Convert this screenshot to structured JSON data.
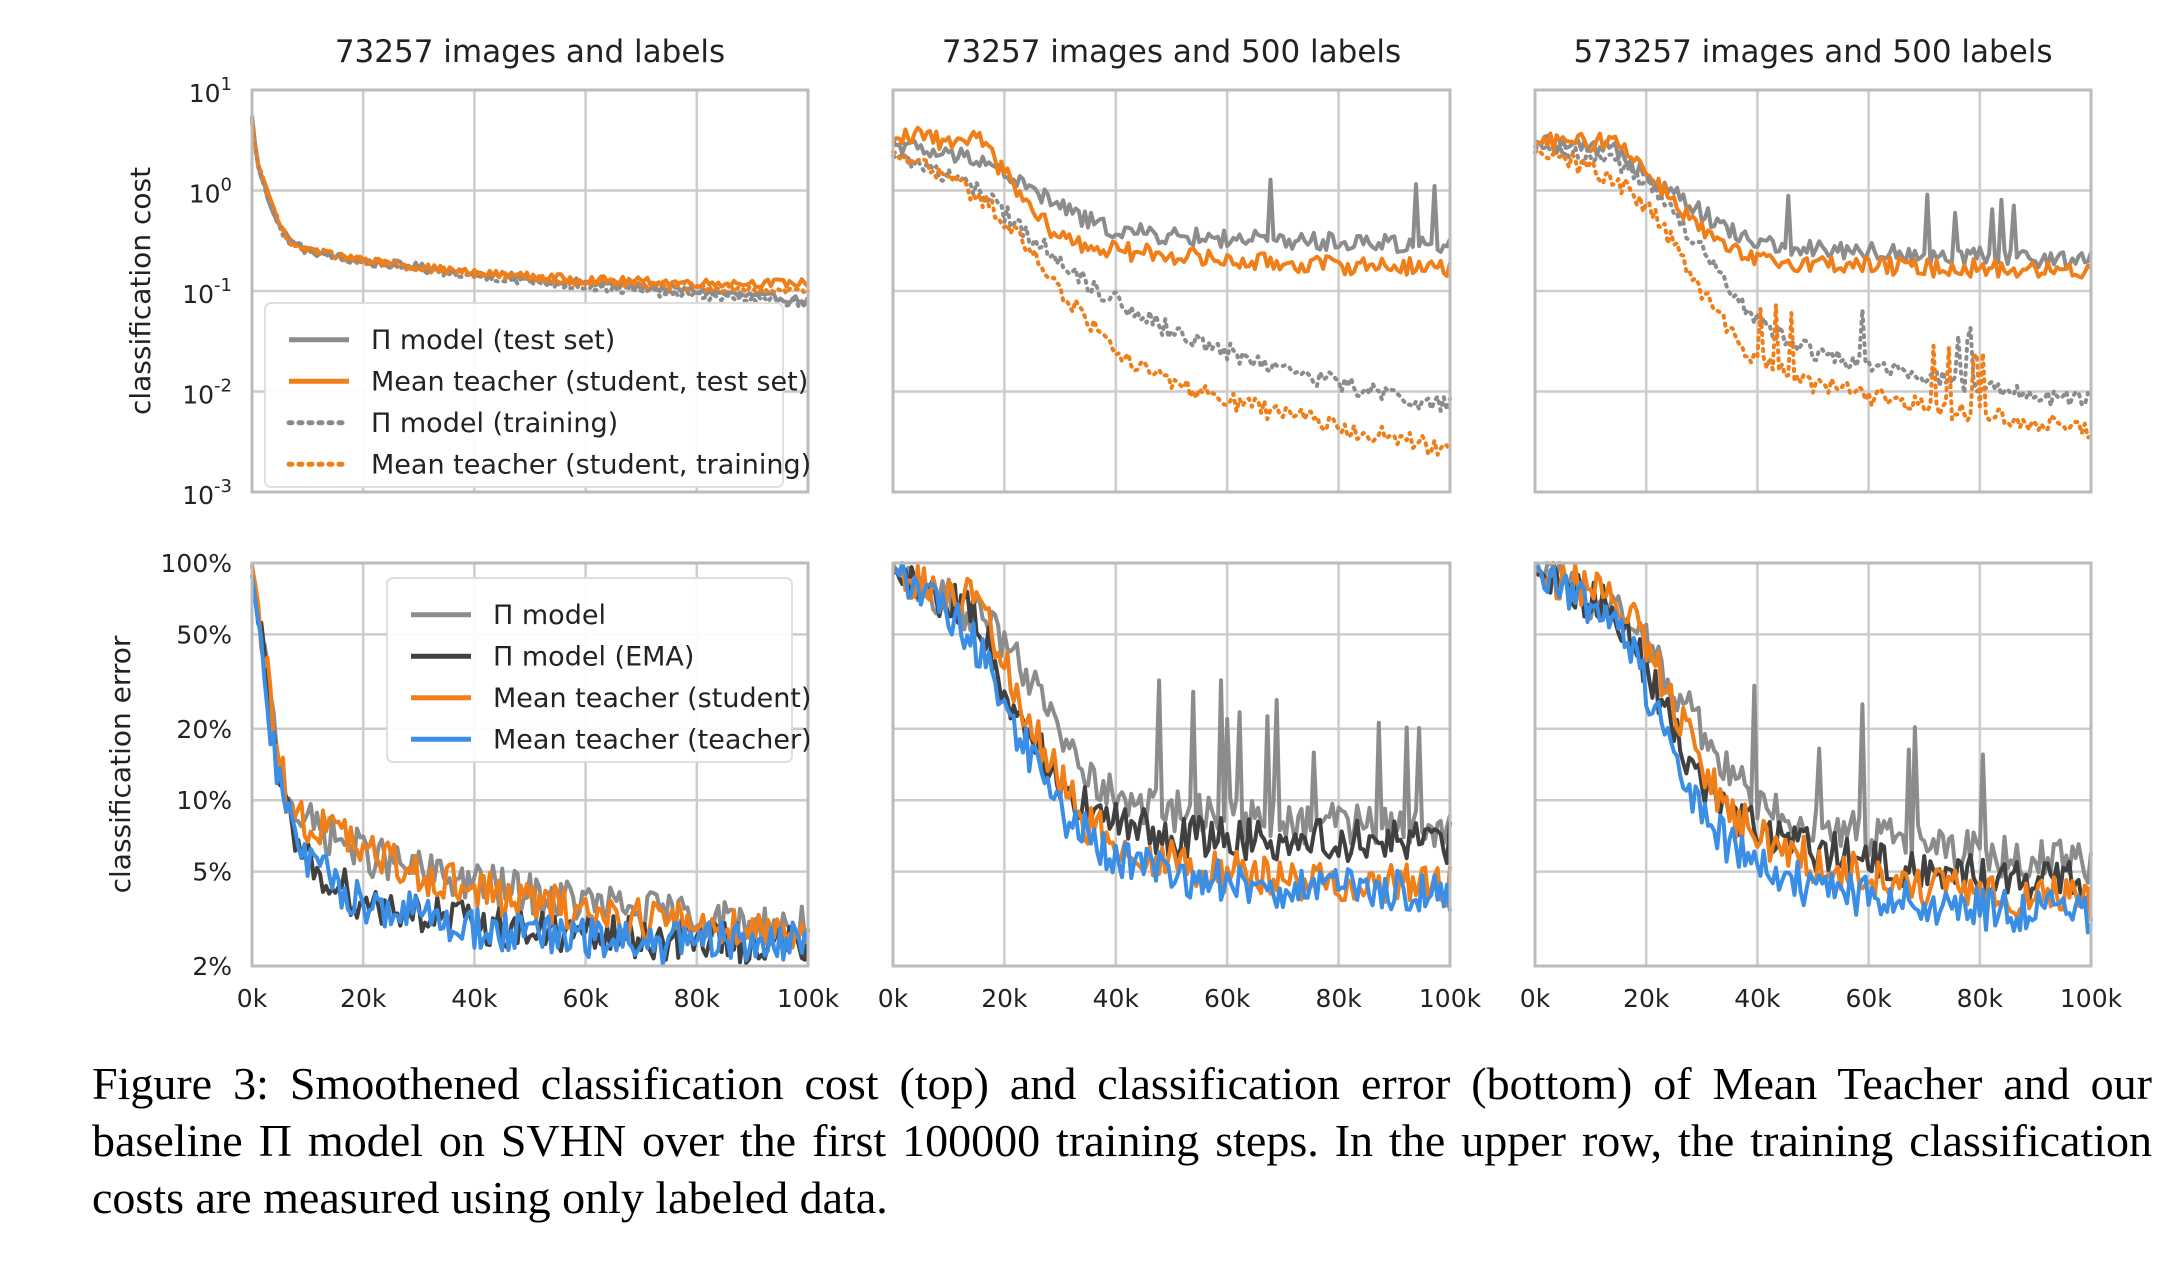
{
  "caption": "Figure 3: Smoothened classification cost (top) and classification error (bottom) of Mean Teacher and our baseline Π model on SVHN over the first 100000 training steps. In the upper row, the training classification costs are measured using only labeled data.",
  "colors": {
    "pi_model": "#8c8c8c",
    "pi_model_ema": "#404040",
    "mean_teacher_student": "#f07f1a",
    "mean_teacher_teacher": "#3a8ee6",
    "grid": "#cccccc",
    "axes": "#bbbbbb"
  },
  "shared_axes": {
    "x_ticks": [
      "0k",
      "20k",
      "40k",
      "60k",
      "80k",
      "100k"
    ],
    "top_ylabel": "classification cost",
    "bottom_ylabel": "classification error",
    "top_yticks": [
      "10^1",
      "10^0",
      "10^-1",
      "10^-2",
      "10^-3"
    ],
    "bottom_yticks": [
      "100%",
      "50%",
      "20%",
      "10%",
      "5%",
      "2%"
    ]
  },
  "legend_top": [
    {
      "label": "Π model (test set)",
      "color": "#8c8c8c",
      "style": "solid"
    },
    {
      "label": "Mean teacher (student, test set)",
      "color": "#f07f1a",
      "style": "solid"
    },
    {
      "label": "Π model (training)",
      "color": "#8c8c8c",
      "style": "dotted"
    },
    {
      "label": "Mean teacher (student, training)",
      "color": "#f07f1a",
      "style": "dotted"
    }
  ],
  "legend_bottom": [
    {
      "label": "Π model",
      "color": "#8c8c8c",
      "style": "solid"
    },
    {
      "label": "Π model (EMA)",
      "color": "#404040",
      "style": "solid"
    },
    {
      "label": "Mean teacher (student)",
      "color": "#f07f1a",
      "style": "solid"
    },
    {
      "label": "Mean teacher (teacher)",
      "color": "#3a8ee6",
      "style": "solid"
    }
  ],
  "chart_data": [
    {
      "type": "line",
      "title": "73257 images and labels",
      "ylabel": "classification cost",
      "yscale": "log",
      "ylim": [
        0.001,
        10
      ],
      "xlim": [
        0,
        100000
      ],
      "grid": true,
      "legend": "lower-left",
      "series": [
        {
          "name": "Π model (test set)",
          "style": "solid",
          "x": [
            0,
            1000,
            3000,
            5000,
            7000,
            10000,
            20000,
            40000,
            60000,
            80000,
            100000
          ],
          "y": [
            5.5,
            1.8,
            0.8,
            0.45,
            0.3,
            0.25,
            0.2,
            0.15,
            0.12,
            0.1,
            0.08
          ]
        },
        {
          "name": "Mean teacher (student, test set)",
          "style": "solid",
          "x": [
            0,
            1000,
            3000,
            5000,
            7000,
            10000,
            20000,
            40000,
            60000,
            80000,
            100000
          ],
          "y": [
            5.0,
            1.9,
            0.85,
            0.45,
            0.3,
            0.26,
            0.2,
            0.15,
            0.13,
            0.12,
            0.12
          ]
        },
        {
          "name": "Π model (training)",
          "style": "dotted",
          "x": [
            0,
            1000,
            3000,
            5000,
            7000,
            10000,
            20000,
            40000,
            60000,
            80000,
            100000
          ],
          "y": [
            5.0,
            1.8,
            0.8,
            0.42,
            0.3,
            0.25,
            0.19,
            0.14,
            0.11,
            0.09,
            0.075
          ]
        },
        {
          "name": "Mean teacher (student, training)",
          "style": "dotted",
          "x": [
            0,
            1000,
            3000,
            5000,
            7000,
            10000,
            20000,
            40000,
            60000,
            80000,
            100000
          ],
          "y": [
            4.8,
            1.8,
            0.85,
            0.45,
            0.3,
            0.26,
            0.2,
            0.15,
            0.12,
            0.11,
            0.1
          ]
        }
      ]
    },
    {
      "type": "line",
      "title": "73257 images and 500 labels",
      "ylabel": "classification cost",
      "yscale": "log",
      "ylim": [
        0.001,
        10
      ],
      "xlim": [
        0,
        100000
      ],
      "grid": true,
      "series": [
        {
          "name": "Π model (test set)",
          "style": "solid",
          "x": [
            0,
            5000,
            10000,
            15000,
            20000,
            25000,
            30000,
            35000,
            40000,
            50000,
            60000,
            70000,
            80000,
            90000,
            100000
          ],
          "y": [
            3.0,
            2.5,
            2.2,
            2.2,
            1.5,
            1.0,
            0.7,
            0.5,
            0.4,
            0.35,
            0.33,
            0.32,
            0.31,
            0.3,
            0.3
          ]
        },
        {
          "name": "Mean teacher (student, test set)",
          "style": "solid",
          "x": [
            0,
            5000,
            10000,
            15000,
            20000,
            25000,
            30000,
            35000,
            40000,
            50000,
            60000,
            70000,
            80000,
            90000,
            100000
          ],
          "y": [
            3.2,
            3.5,
            3.0,
            3.5,
            1.5,
            0.6,
            0.35,
            0.28,
            0.25,
            0.23,
            0.2,
            0.19,
            0.18,
            0.18,
            0.17
          ]
        },
        {
          "name": "Π model (training)",
          "style": "dotted",
          "x": [
            0,
            5000,
            10000,
            15000,
            20000,
            25000,
            30000,
            35000,
            40000,
            50000,
            60000,
            70000,
            80000,
            90000,
            100000
          ],
          "y": [
            2.3,
            1.8,
            1.4,
            1.0,
            0.6,
            0.35,
            0.2,
            0.12,
            0.08,
            0.04,
            0.025,
            0.017,
            0.012,
            0.009,
            0.007
          ]
        },
        {
          "name": "Mean teacher (student, training)",
          "style": "dotted",
          "x": [
            0,
            5000,
            10000,
            15000,
            20000,
            25000,
            30000,
            35000,
            40000,
            50000,
            60000,
            70000,
            80000,
            90000,
            100000
          ],
          "y": [
            2.3,
            1.8,
            1.3,
            0.9,
            0.5,
            0.25,
            0.1,
            0.05,
            0.025,
            0.012,
            0.008,
            0.006,
            0.0045,
            0.0035,
            0.0025
          ]
        }
      ]
    },
    {
      "type": "line",
      "title": "573257 images and 500 labels",
      "ylabel": "classification cost",
      "yscale": "log",
      "ylim": [
        0.001,
        10
      ],
      "xlim": [
        0,
        100000
      ],
      "grid": true,
      "series": [
        {
          "name": "Π model (test set)",
          "style": "solid",
          "x": [
            0,
            5000,
            10000,
            15000,
            20000,
            25000,
            30000,
            35000,
            40000,
            50000,
            60000,
            70000,
            80000,
            90000,
            100000
          ],
          "y": [
            3.0,
            2.8,
            2.5,
            2.5,
            1.5,
            1.0,
            0.6,
            0.4,
            0.3,
            0.27,
            0.25,
            0.23,
            0.22,
            0.21,
            0.2
          ]
        },
        {
          "name": "Mean teacher (student, test set)",
          "style": "solid",
          "x": [
            0,
            5000,
            10000,
            15000,
            20000,
            25000,
            30000,
            35000,
            40000,
            50000,
            60000,
            70000,
            80000,
            90000,
            100000
          ],
          "y": [
            3.0,
            3.0,
            3.0,
            3.3,
            1.5,
            0.8,
            0.4,
            0.25,
            0.2,
            0.19,
            0.18,
            0.17,
            0.17,
            0.16,
            0.16
          ]
        },
        {
          "name": "Π model (training)",
          "style": "dotted",
          "x": [
            0,
            5000,
            10000,
            15000,
            20000,
            25000,
            30000,
            35000,
            40000,
            50000,
            60000,
            70000,
            80000,
            90000,
            100000
          ],
          "y": [
            2.8,
            2.5,
            2.2,
            1.8,
            1.2,
            0.6,
            0.25,
            0.1,
            0.05,
            0.025,
            0.018,
            0.014,
            0.011,
            0.009,
            0.008
          ]
        },
        {
          "name": "Mean teacher (student, training)",
          "style": "dotted",
          "x": [
            0,
            5000,
            10000,
            15000,
            20000,
            25000,
            30000,
            35000,
            40000,
            50000,
            60000,
            70000,
            80000,
            90000,
            100000
          ],
          "y": [
            2.5,
            2.0,
            1.6,
            1.2,
            0.7,
            0.3,
            0.1,
            0.04,
            0.02,
            0.012,
            0.009,
            0.007,
            0.006,
            0.005,
            0.004
          ]
        }
      ]
    },
    {
      "type": "line",
      "title": "",
      "ylabel": "classification error",
      "yscale": "log",
      "ylim": [
        0.02,
        1.0
      ],
      "xlim": [
        0,
        100000
      ],
      "grid": true,
      "legend": "top-right",
      "series": [
        {
          "name": "Π model",
          "style": "solid",
          "x": [
            0,
            2000,
            4000,
            6000,
            8000,
            10000,
            15000,
            20000,
            30000,
            40000,
            50000,
            60000,
            70000,
            80000,
            90000,
            100000
          ],
          "y": [
            0.95,
            0.45,
            0.2,
            0.12,
            0.09,
            0.08,
            0.07,
            0.06,
            0.05,
            0.045,
            0.04,
            0.037,
            0.034,
            0.032,
            0.03,
            0.029
          ]
        },
        {
          "name": "Π model (EMA)",
          "style": "solid",
          "x": [
            0,
            2000,
            4000,
            6000,
            8000,
            10000,
            15000,
            20000,
            30000,
            40000,
            50000,
            60000,
            70000,
            80000,
            90000,
            100000
          ],
          "y": [
            0.9,
            0.4,
            0.15,
            0.09,
            0.065,
            0.055,
            0.045,
            0.037,
            0.034,
            0.03,
            0.028,
            0.027,
            0.026,
            0.026,
            0.025,
            0.025
          ]
        },
        {
          "name": "Mean teacher (student)",
          "style": "solid",
          "x": [
            0,
            2000,
            4000,
            6000,
            8000,
            10000,
            15000,
            20000,
            30000,
            40000,
            50000,
            60000,
            70000,
            80000,
            90000,
            100000
          ],
          "y": [
            0.95,
            0.45,
            0.2,
            0.11,
            0.085,
            0.08,
            0.075,
            0.06,
            0.05,
            0.042,
            0.037,
            0.034,
            0.032,
            0.03,
            0.029,
            0.028
          ]
        },
        {
          "name": "Mean teacher (teacher)",
          "style": "solid",
          "x": [
            0,
            2000,
            4000,
            6000,
            8000,
            10000,
            15000,
            20000,
            30000,
            40000,
            50000,
            60000,
            70000,
            80000,
            90000,
            100000
          ],
          "y": [
            0.9,
            0.4,
            0.15,
            0.09,
            0.065,
            0.055,
            0.045,
            0.037,
            0.033,
            0.029,
            0.027,
            0.026,
            0.025,
            0.025,
            0.025,
            0.025
          ]
        }
      ]
    },
    {
      "type": "line",
      "title": "",
      "ylabel": "classification error",
      "yscale": "log",
      "ylim": [
        0.02,
        1.0
      ],
      "xlim": [
        0,
        100000
      ],
      "grid": true,
      "series": [
        {
          "name": "Π model",
          "style": "solid",
          "x": [
            0,
            5000,
            10000,
            15000,
            20000,
            25000,
            30000,
            35000,
            40000,
            50000,
            60000,
            70000,
            80000,
            90000,
            100000
          ],
          "y": [
            0.95,
            0.8,
            0.7,
            0.6,
            0.45,
            0.3,
            0.2,
            0.13,
            0.1,
            0.09,
            0.085,
            0.08,
            0.08,
            0.078,
            0.075
          ]
        },
        {
          "name": "Π model (EMA)",
          "style": "solid",
          "x": [
            0,
            5000,
            10000,
            15000,
            20000,
            25000,
            30000,
            35000,
            40000,
            50000,
            60000,
            70000,
            80000,
            90000,
            100000
          ],
          "y": [
            0.95,
            0.8,
            0.7,
            0.6,
            0.3,
            0.18,
            0.12,
            0.09,
            0.08,
            0.07,
            0.07,
            0.068,
            0.068,
            0.068,
            0.066
          ]
        },
        {
          "name": "Mean teacher (student)",
          "style": "solid",
          "x": [
            0,
            5000,
            10000,
            15000,
            20000,
            25000,
            30000,
            35000,
            40000,
            50000,
            60000,
            70000,
            80000,
            90000,
            100000
          ],
          "y": [
            0.95,
            0.8,
            0.75,
            0.7,
            0.4,
            0.2,
            0.12,
            0.08,
            0.065,
            0.055,
            0.05,
            0.047,
            0.045,
            0.045,
            0.044
          ]
        },
        {
          "name": "Mean teacher (teacher)",
          "style": "solid",
          "x": [
            0,
            5000,
            10000,
            15000,
            20000,
            25000,
            30000,
            35000,
            40000,
            50000,
            60000,
            70000,
            80000,
            90000,
            100000
          ],
          "y": [
            0.95,
            0.75,
            0.6,
            0.45,
            0.25,
            0.15,
            0.09,
            0.07,
            0.057,
            0.048,
            0.045,
            0.043,
            0.042,
            0.041,
            0.04
          ]
        }
      ]
    },
    {
      "type": "line",
      "title": "",
      "ylabel": "classification error",
      "yscale": "log",
      "ylim": [
        0.02,
        1.0
      ],
      "xlim": [
        0,
        100000
      ],
      "grid": true,
      "series": [
        {
          "name": "Π model",
          "style": "solid",
          "x": [
            0,
            5000,
            10000,
            15000,
            20000,
            25000,
            30000,
            35000,
            40000,
            50000,
            60000,
            70000,
            80000,
            90000,
            100000
          ],
          "y": [
            0.95,
            0.85,
            0.7,
            0.65,
            0.45,
            0.3,
            0.2,
            0.13,
            0.1,
            0.08,
            0.07,
            0.065,
            0.06,
            0.055,
            0.055
          ]
        },
        {
          "name": "Π model (EMA)",
          "style": "solid",
          "x": [
            0,
            5000,
            10000,
            15000,
            20000,
            25000,
            30000,
            35000,
            40000,
            50000,
            60000,
            70000,
            80000,
            90000,
            100000
          ],
          "y": [
            0.95,
            0.85,
            0.7,
            0.6,
            0.35,
            0.2,
            0.12,
            0.09,
            0.075,
            0.062,
            0.055,
            0.05,
            0.048,
            0.046,
            0.044
          ]
        },
        {
          "name": "Mean teacher (student)",
          "style": "solid",
          "x": [
            0,
            5000,
            10000,
            15000,
            20000,
            25000,
            30000,
            35000,
            40000,
            50000,
            60000,
            70000,
            80000,
            90000,
            100000
          ],
          "y": [
            0.95,
            0.85,
            0.75,
            0.7,
            0.45,
            0.25,
            0.14,
            0.09,
            0.07,
            0.055,
            0.047,
            0.043,
            0.04,
            0.039,
            0.038
          ]
        },
        {
          "name": "Mean teacher (teacher)",
          "style": "solid",
          "x": [
            0,
            5000,
            10000,
            15000,
            20000,
            25000,
            30000,
            35000,
            40000,
            50000,
            60000,
            70000,
            80000,
            90000,
            100000
          ],
          "y": [
            0.95,
            0.8,
            0.65,
            0.55,
            0.3,
            0.15,
            0.09,
            0.065,
            0.052,
            0.043,
            0.039,
            0.036,
            0.035,
            0.034,
            0.033
          ]
        }
      ]
    }
  ]
}
